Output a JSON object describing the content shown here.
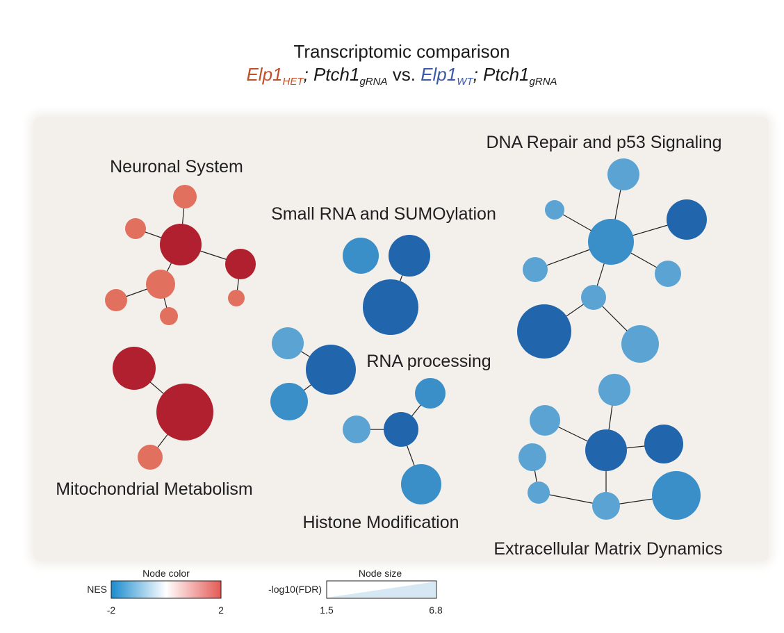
{
  "title": {
    "line1": "Transcriptomic comparison",
    "het_gene": "Elp1",
    "het_sub": "HET",
    "sep1": ";",
    "ptch_gene": "Ptch1",
    "ptch_sub": "gRNA",
    "vs": "vs.",
    "wt_gene": "Elp1",
    "wt_sub": "WT",
    "sep2": ";"
  },
  "colors": {
    "het": "#c0502a",
    "wt": "#3d5aa8",
    "red_strong": "#b0202e",
    "red_light": "#e2705f",
    "blue_dark": "#2166ac",
    "blue_mid": "#3a8fc8",
    "blue_light": "#5aa3d3"
  },
  "clusters": [
    {
      "label": "Neuronal System",
      "nes": "positive"
    },
    {
      "label": "Mitochondrial Metabolism",
      "nes": "positive"
    },
    {
      "label": "Small RNA and SUMOylation",
      "nes": "negative"
    },
    {
      "label": "RNA processing",
      "nes": "negative"
    },
    {
      "label": "Histone Modification",
      "nes": "negative"
    },
    {
      "label": "DNA Repair and p53 Signaling",
      "nes": "negative"
    },
    {
      "label": "Extracellular Matrix Dynamics",
      "nes": "negative"
    }
  ],
  "legend": {
    "color": {
      "title": "Node color",
      "label": "NES",
      "min": "-2",
      "max": "2"
    },
    "size": {
      "title": "Node size",
      "label": "-log10(FDR)",
      "min": "1.5",
      "max": "6.8"
    }
  }
}
